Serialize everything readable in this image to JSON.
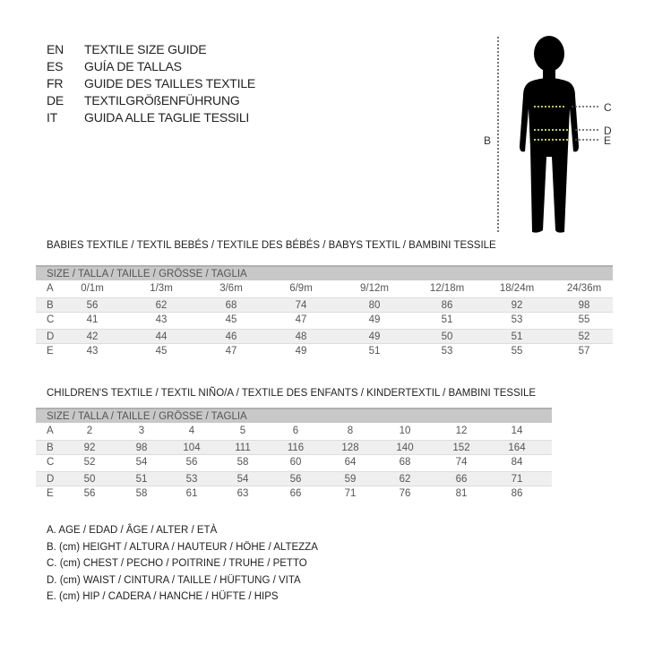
{
  "languages": [
    {
      "code": "EN",
      "text": "TEXTILE SIZE GUIDE"
    },
    {
      "code": "ES",
      "text": "GUÍA DE TALLAS"
    },
    {
      "code": "FR",
      "text": "GUIDE DES TAILLES TEXTILE"
    },
    {
      "code": "DE",
      "text": "TEXTILGRÖßENFÜHRUNG"
    },
    {
      "code": "IT",
      "text": "GUIDA ALLE TAGLIE TESSILI"
    }
  ],
  "figure": {
    "labels": {
      "B": "B",
      "C": "C",
      "D": "D",
      "E": "E"
    },
    "measure_line_color": "#c8d400"
  },
  "babies": {
    "title": "BABIES TEXTILE / TEXTIL BEBÉS / TEXTILE DES BÉBÉS / BABYS TEXTIL  / BAMBINI TESSILE",
    "header": "SIZE / TALLA / TAILLE / GRÖSSE / TAGLIA",
    "rows": [
      {
        "label": "A",
        "values": [
          "0/1m",
          "1/3m",
          "3/6m",
          "6/9m",
          "9/12m",
          "12/18m",
          "18/24m",
          "24/36m"
        ]
      },
      {
        "label": "B",
        "values": [
          "56",
          "62",
          "68",
          "74",
          "80",
          "86",
          "92",
          "98"
        ]
      },
      {
        "label": "C",
        "values": [
          "41",
          "43",
          "45",
          "47",
          "49",
          "51",
          "53",
          "55"
        ]
      },
      {
        "label": "D",
        "values": [
          "42",
          "44",
          "46",
          "48",
          "49",
          "50",
          "51",
          "52"
        ]
      },
      {
        "label": "E",
        "values": [
          "43",
          "45",
          "47",
          "49",
          "51",
          "53",
          "55",
          "57"
        ]
      }
    ]
  },
  "children": {
    "title": "CHILDREN'S TEXTILE / TEXTIL NIÑO/A / TEXTILE DES ENFANTS / KINDERTEXTIL / BAMBINI TESSILE",
    "header": "SIZE / TALLA / TAILLE / GRÖSSE / TAGLIA",
    "rows": [
      {
        "label": "A",
        "values": [
          "2",
          "3",
          "4",
          "5",
          "6",
          "8",
          "10",
          "12",
          "14"
        ]
      },
      {
        "label": "B",
        "values": [
          "92",
          "98",
          "104",
          "111",
          "116",
          "128",
          "140",
          "152",
          "164"
        ]
      },
      {
        "label": "C",
        "values": [
          "52",
          "54",
          "56",
          "58",
          "60",
          "64",
          "68",
          "74",
          "84"
        ]
      },
      {
        "label": "D",
        "values": [
          "50",
          "51",
          "53",
          "54",
          "56",
          "59",
          "62",
          "66",
          "71"
        ]
      },
      {
        "label": "E",
        "values": [
          "56",
          "58",
          "61",
          "63",
          "66",
          "71",
          "76",
          "81",
          "86"
        ]
      }
    ]
  },
  "legend": [
    "A. AGE / EDAD / ÂGE / ALTER / ETÀ",
    "B. (cm) HEIGHT / ALTURA / HAUTEUR / HÖHE / ALTEZZA",
    "C. (cm) CHEST / PECHO / POITRINE / TRUHE / PETTO",
    "D. (cm) WAIST / CINTURA / TAILLE / HÜFTUNG / VITA",
    "E. (cm) HIP / CADERA / HANCHE / HÜFTE / HIPS"
  ]
}
